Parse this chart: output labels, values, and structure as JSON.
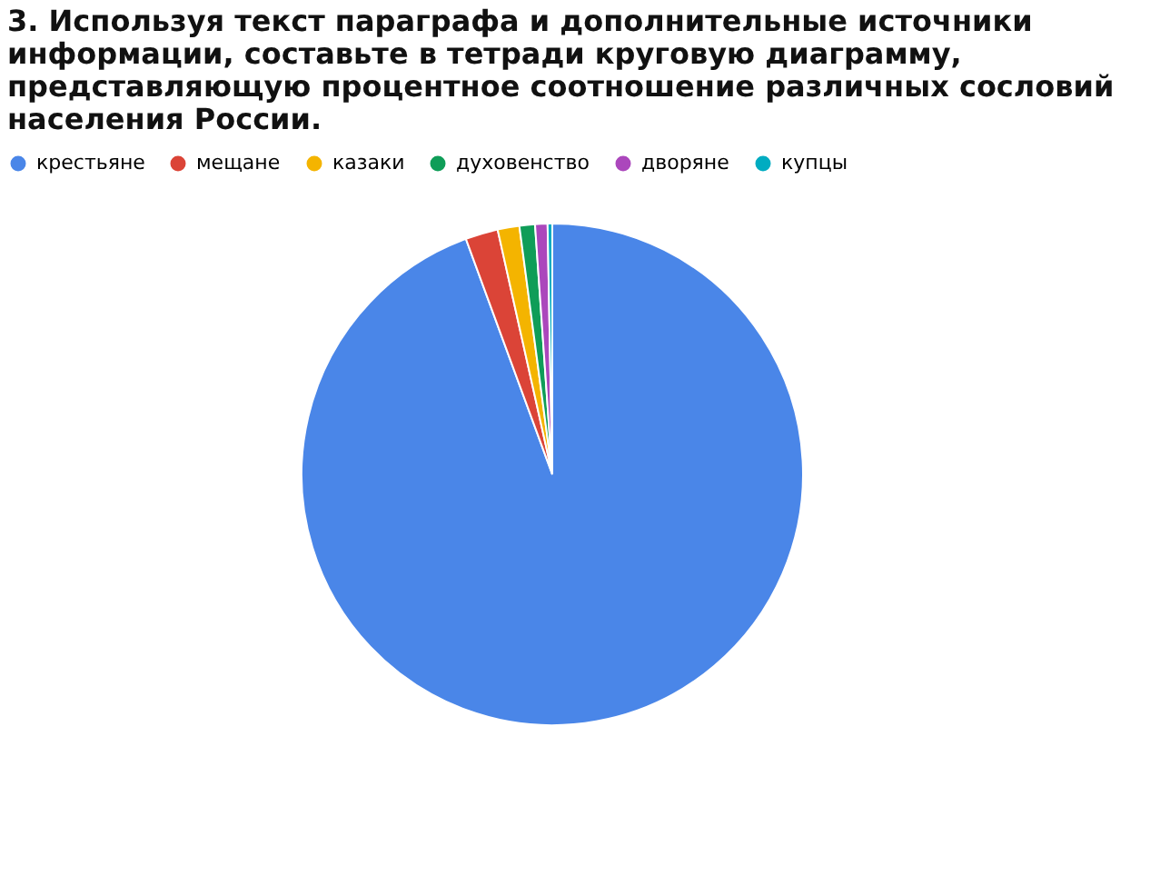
{
  "chart_data": {
    "type": "pie",
    "title": "3. Используя текст параграфа и дополнительные источники информации, составьте в тетради круговую диаграмму, представляющую процентное соотношение различных сословий населения России.",
    "categories": [
      "крестьяне",
      "мещане",
      "казаки",
      "духовенство",
      "дворяне",
      "купцы"
    ],
    "values": [
      94.4,
      2.1,
      1.4,
      1.0,
      0.8,
      0.3
    ],
    "colors": [
      "#4a86e8",
      "#db4437",
      "#f4b400",
      "#0f9d58",
      "#ab47bc",
      "#00acc1"
    ],
    "legend": "top"
  }
}
